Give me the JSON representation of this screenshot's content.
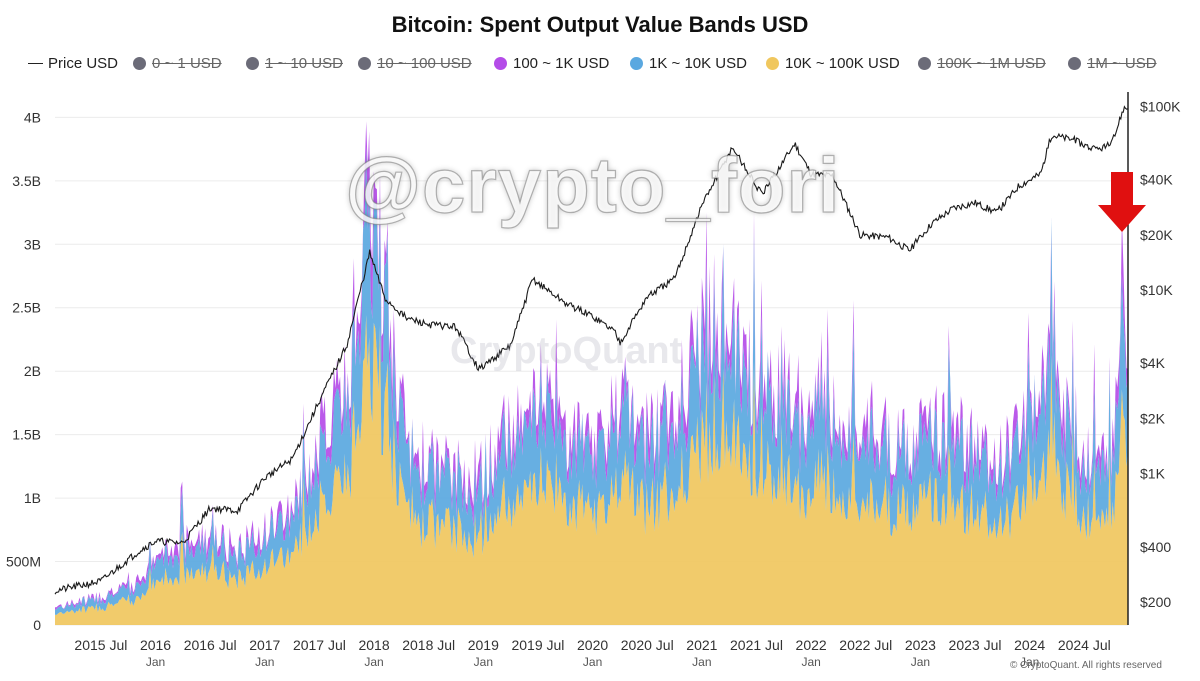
{
  "title": "Bitcoin: Spent Output Value Bands USD",
  "legend": [
    {
      "label": "Price USD",
      "kind": "line",
      "color": "#222222",
      "active": true
    },
    {
      "label": "0 ~ 1 USD",
      "kind": "dot",
      "color": "#6b6b78",
      "active": false
    },
    {
      "label": "1 ~ 10 USD",
      "kind": "dot",
      "color": "#6b6b78",
      "active": false
    },
    {
      "label": "10 ~ 100 USD",
      "kind": "dot",
      "color": "#6b6b78",
      "active": false
    },
    {
      "label": "100 ~ 1K USD",
      "kind": "dot",
      "color": "#b44ce8",
      "active": true
    },
    {
      "label": "1K ~ 10K USD",
      "kind": "dot",
      "color": "#5aa8e0",
      "active": true
    },
    {
      "label": "10K ~ 100K USD",
      "kind": "dot",
      "color": "#f0c75e",
      "active": true
    },
    {
      "label": "100K ~ 1M USD",
      "kind": "dot",
      "color": "#6b6b78",
      "active": false
    },
    {
      "label": "1M ~ USD",
      "kind": "dot",
      "color": "#6b6b78",
      "active": false
    }
  ],
  "watermark": "@crypto_fori",
  "source_watermark": "CryptoQuant",
  "copyright": "© CryptoQuant. All rights reserved",
  "annotation": {
    "type": "arrow",
    "direction": "down",
    "color": "#e01010"
  },
  "chart_data": {
    "type": "area",
    "stacked": true,
    "x_ticks": [
      {
        "t": 2015.5,
        "label": "2015 Jul",
        "sub": ""
      },
      {
        "t": 2016.0,
        "label": "2016",
        "sub": "Jan"
      },
      {
        "t": 2016.5,
        "label": "2016 Jul",
        "sub": ""
      },
      {
        "t": 2017.0,
        "label": "2017",
        "sub": "Jan"
      },
      {
        "t": 2017.5,
        "label": "2017 Jul",
        "sub": ""
      },
      {
        "t": 2018.0,
        "label": "2018",
        "sub": "Jan"
      },
      {
        "t": 2018.5,
        "label": "2018 Jul",
        "sub": ""
      },
      {
        "t": 2019.0,
        "label": "2019",
        "sub": "Jan"
      },
      {
        "t": 2019.5,
        "label": "2019 Jul",
        "sub": ""
      },
      {
        "t": 2020.0,
        "label": "2020",
        "sub": "Jan"
      },
      {
        "t": 2020.5,
        "label": "2020 Jul",
        "sub": ""
      },
      {
        "t": 2021.0,
        "label": "2021",
        "sub": "Jan"
      },
      {
        "t": 2021.5,
        "label": "2021 Jul",
        "sub": ""
      },
      {
        "t": 2022.0,
        "label": "2022",
        "sub": "Jan"
      },
      {
        "t": 2022.5,
        "label": "2022 Jul",
        "sub": ""
      },
      {
        "t": 2023.0,
        "label": "2023",
        "sub": "Jan"
      },
      {
        "t": 2023.5,
        "label": "2023 Jul",
        "sub": ""
      },
      {
        "t": 2024.0,
        "label": "2024",
        "sub": "Jan"
      },
      {
        "t": 2024.5,
        "label": "2024 Jul",
        "sub": ""
      }
    ],
    "x_range": [
      2015.08,
      2024.9
    ],
    "y_left": {
      "ticks": [
        {
          "v": 0,
          "label": "0"
        },
        {
          "v": 500000000,
          "label": "500M"
        },
        {
          "v": 1000000000,
          "label": "1B"
        },
        {
          "v": 1500000000,
          "label": "1.5B"
        },
        {
          "v": 2000000000,
          "label": "2B"
        },
        {
          "v": 2500000000,
          "label": "2.5B"
        },
        {
          "v": 3000000000,
          "label": "3B"
        },
        {
          "v": 3500000000,
          "label": "3.5B"
        },
        {
          "v": 4000000000,
          "label": "4B"
        }
      ],
      "range": [
        0,
        4200000000
      ]
    },
    "y_right": {
      "scale": "log",
      "ticks": [
        {
          "v": 200,
          "label": "$200"
        },
        {
          "v": 400,
          "label": "$400"
        },
        {
          "v": 1000,
          "label": "$1K"
        },
        {
          "v": 2000,
          "label": "$2K"
        },
        {
          "v": 4000,
          "label": "$4K"
        },
        {
          "v": 10000,
          "label": "$10K"
        },
        {
          "v": 20000,
          "label": "$20K"
        },
        {
          "v": 40000,
          "label": "$40K"
        },
        {
          "v": 100000,
          "label": "$100K"
        }
      ],
      "range": [
        150,
        120000
      ]
    },
    "bands": [
      {
        "name": "10K ~ 100K USD",
        "color": "#f0c75e"
      },
      {
        "name": "1K ~ 10K USD",
        "color": "#5aa8e0"
      },
      {
        "name": "100 ~ 1K USD",
        "color": "#b44ce8"
      }
    ],
    "series_total_keypoints": [
      [
        2015.08,
        140000000
      ],
      [
        2015.5,
        230000000
      ],
      [
        2015.8,
        300000000
      ],
      [
        2016.0,
        520000000
      ],
      [
        2016.25,
        650000000
      ],
      [
        2016.5,
        700000000
      ],
      [
        2016.75,
        600000000
      ],
      [
        2017.0,
        750000000
      ],
      [
        2017.25,
        950000000
      ],
      [
        2017.5,
        1400000000
      ],
      [
        2017.75,
        1900000000
      ],
      [
        2017.96,
        3500000000
      ],
      [
        2018.1,
        2700000000
      ],
      [
        2018.3,
        1400000000
      ],
      [
        2018.5,
        1300000000
      ],
      [
        2018.75,
        1200000000
      ],
      [
        2019.0,
        1200000000
      ],
      [
        2019.3,
        1700000000
      ],
      [
        2019.5,
        1900000000
      ],
      [
        2019.75,
        1500000000
      ],
      [
        2020.0,
        1400000000
      ],
      [
        2020.2,
        1700000000
      ],
      [
        2020.5,
        1500000000
      ],
      [
        2020.75,
        1700000000
      ],
      [
        2021.0,
        2300000000
      ],
      [
        2021.25,
        2500000000
      ],
      [
        2021.5,
        1800000000
      ],
      [
        2021.75,
        1900000000
      ],
      [
        2022.0,
        1600000000
      ],
      [
        2022.3,
        1700000000
      ],
      [
        2022.5,
        1500000000
      ],
      [
        2022.75,
        1400000000
      ],
      [
        2023.0,
        1500000000
      ],
      [
        2023.3,
        1600000000
      ],
      [
        2023.5,
        1400000000
      ],
      [
        2023.75,
        1300000000
      ],
      [
        2024.0,
        1700000000
      ],
      [
        2024.2,
        2000000000
      ],
      [
        2024.5,
        1400000000
      ],
      [
        2024.75,
        1450000000
      ],
      [
        2024.85,
        2600000000
      ],
      [
        2024.9,
        1900000000
      ]
    ],
    "price_keypoints": [
      [
        2015.08,
        230
      ],
      [
        2015.5,
        260
      ],
      [
        2015.85,
        380
      ],
      [
        2016.0,
        430
      ],
      [
        2016.25,
        420
      ],
      [
        2016.5,
        650
      ],
      [
        2016.75,
        630
      ],
      [
        2017.0,
        950
      ],
      [
        2017.25,
        1200
      ],
      [
        2017.5,
        2500
      ],
      [
        2017.75,
        5000
      ],
      [
        2017.96,
        16000
      ],
      [
        2018.1,
        9000
      ],
      [
        2018.3,
        7000
      ],
      [
        2018.5,
        6500
      ],
      [
        2018.75,
        6300
      ],
      [
        2018.96,
        3700
      ],
      [
        2019.25,
        5000
      ],
      [
        2019.45,
        11500
      ],
      [
        2019.75,
        8500
      ],
      [
        2020.0,
        7200
      ],
      [
        2020.2,
        6000
      ],
      [
        2020.25,
        5200
      ],
      [
        2020.5,
        9200
      ],
      [
        2020.75,
        11500
      ],
      [
        2021.0,
        29000
      ],
      [
        2021.28,
        60000
      ],
      [
        2021.55,
        33000
      ],
      [
        2021.85,
        63000
      ],
      [
        2022.0,
        43000
      ],
      [
        2022.2,
        42000
      ],
      [
        2022.45,
        20000
      ],
      [
        2022.7,
        19500
      ],
      [
        2022.9,
        16500
      ],
      [
        2023.1,
        23000
      ],
      [
        2023.3,
        28000
      ],
      [
        2023.5,
        30000
      ],
      [
        2023.7,
        26500
      ],
      [
        2023.9,
        37000
      ],
      [
        2024.1,
        43000
      ],
      [
        2024.2,
        70000
      ],
      [
        2024.4,
        66000
      ],
      [
        2024.6,
        58000
      ],
      [
        2024.75,
        62000
      ],
      [
        2024.86,
        98000
      ]
    ]
  }
}
